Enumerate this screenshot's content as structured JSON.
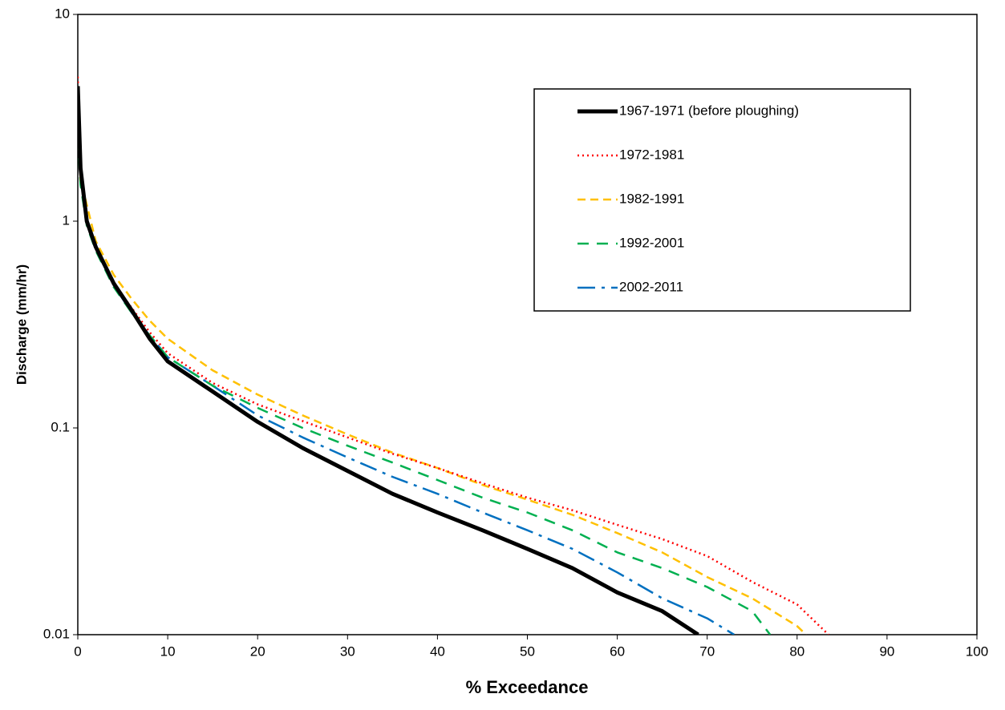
{
  "chart_data": {
    "type": "line",
    "xlabel": "% Exceedance",
    "ylabel": "Discharge (mm/hr)",
    "xlim": [
      0,
      100
    ],
    "xticks": [
      0,
      10,
      20,
      30,
      40,
      50,
      60,
      70,
      80,
      90,
      100
    ],
    "ylim": [
      0.01,
      10
    ],
    "yticks": [
      0.01,
      0.1,
      1,
      10
    ],
    "log_y": true,
    "grid": false,
    "legend": "upper right",
    "series": [
      {
        "name": "1967-1971 (before ploughing)",
        "color": "#000000",
        "dash": "solid",
        "width": 5,
        "x": [
          0,
          0.3,
          1,
          2,
          4,
          6,
          8,
          10,
          15,
          20,
          25,
          30,
          35,
          40,
          45,
          50,
          55,
          60,
          65,
          69
        ],
        "values": [
          4.5,
          1.8,
          1.0,
          0.75,
          0.5,
          0.37,
          0.27,
          0.21,
          0.15,
          0.107,
          0.08,
          0.062,
          0.048,
          0.039,
          0.032,
          0.026,
          0.021,
          0.016,
          0.013,
          0.01
        ]
      },
      {
        "name": "1972-1981",
        "color": "#ff0000",
        "dash": "dot",
        "width": 2.5,
        "x": [
          0,
          0.3,
          1,
          2,
          4,
          6,
          8,
          10,
          15,
          20,
          25,
          30,
          35,
          40,
          45,
          50,
          55,
          60,
          65,
          70,
          75,
          80,
          83.5
        ],
        "values": [
          5,
          1.8,
          1.0,
          0.75,
          0.5,
          0.38,
          0.29,
          0.23,
          0.165,
          0.13,
          0.108,
          0.09,
          0.075,
          0.064,
          0.054,
          0.046,
          0.04,
          0.034,
          0.029,
          0.024,
          0.018,
          0.014,
          0.01
        ]
      },
      {
        "name": "1982-1991",
        "color": "#ffc000",
        "dash": "dash",
        "width": 2.5,
        "x": [
          0,
          0.3,
          1,
          2,
          4,
          6,
          8,
          10,
          15,
          20,
          25,
          30,
          35,
          40,
          45,
          50,
          55,
          60,
          65,
          70,
          75,
          80,
          81
        ],
        "values": [
          3,
          1.6,
          1.2,
          0.8,
          0.55,
          0.42,
          0.33,
          0.27,
          0.19,
          0.145,
          0.115,
          0.093,
          0.076,
          0.064,
          0.053,
          0.045,
          0.038,
          0.031,
          0.025,
          0.019,
          0.015,
          0.011,
          0.01
        ]
      },
      {
        "name": "1992-2001",
        "color": "#00b050",
        "dash": "longdash",
        "width": 2.5,
        "x": [
          0,
          0.3,
          1,
          2,
          4,
          6,
          8,
          10,
          15,
          20,
          25,
          30,
          35,
          40,
          45,
          50,
          55,
          60,
          65,
          70,
          75,
          77
        ],
        "values": [
          2.5,
          1.5,
          0.95,
          0.72,
          0.48,
          0.36,
          0.28,
          0.22,
          0.16,
          0.125,
          0.1,
          0.082,
          0.068,
          0.056,
          0.046,
          0.039,
          0.032,
          0.025,
          0.021,
          0.017,
          0.013,
          0.01
        ]
      },
      {
        "name": "2002-2011",
        "color": "#0070c0",
        "dash": "dashdot",
        "width": 2.5,
        "x": [
          0,
          0.3,
          1,
          2,
          4,
          6,
          8,
          10,
          15,
          20,
          25,
          30,
          35,
          40,
          45,
          50,
          55,
          60,
          65,
          70,
          73
        ],
        "values": [
          4,
          1.7,
          0.98,
          0.73,
          0.49,
          0.36,
          0.28,
          0.22,
          0.16,
          0.115,
          0.09,
          0.072,
          0.058,
          0.048,
          0.039,
          0.032,
          0.026,
          0.02,
          0.015,
          0.012,
          0.01
        ]
      }
    ]
  }
}
